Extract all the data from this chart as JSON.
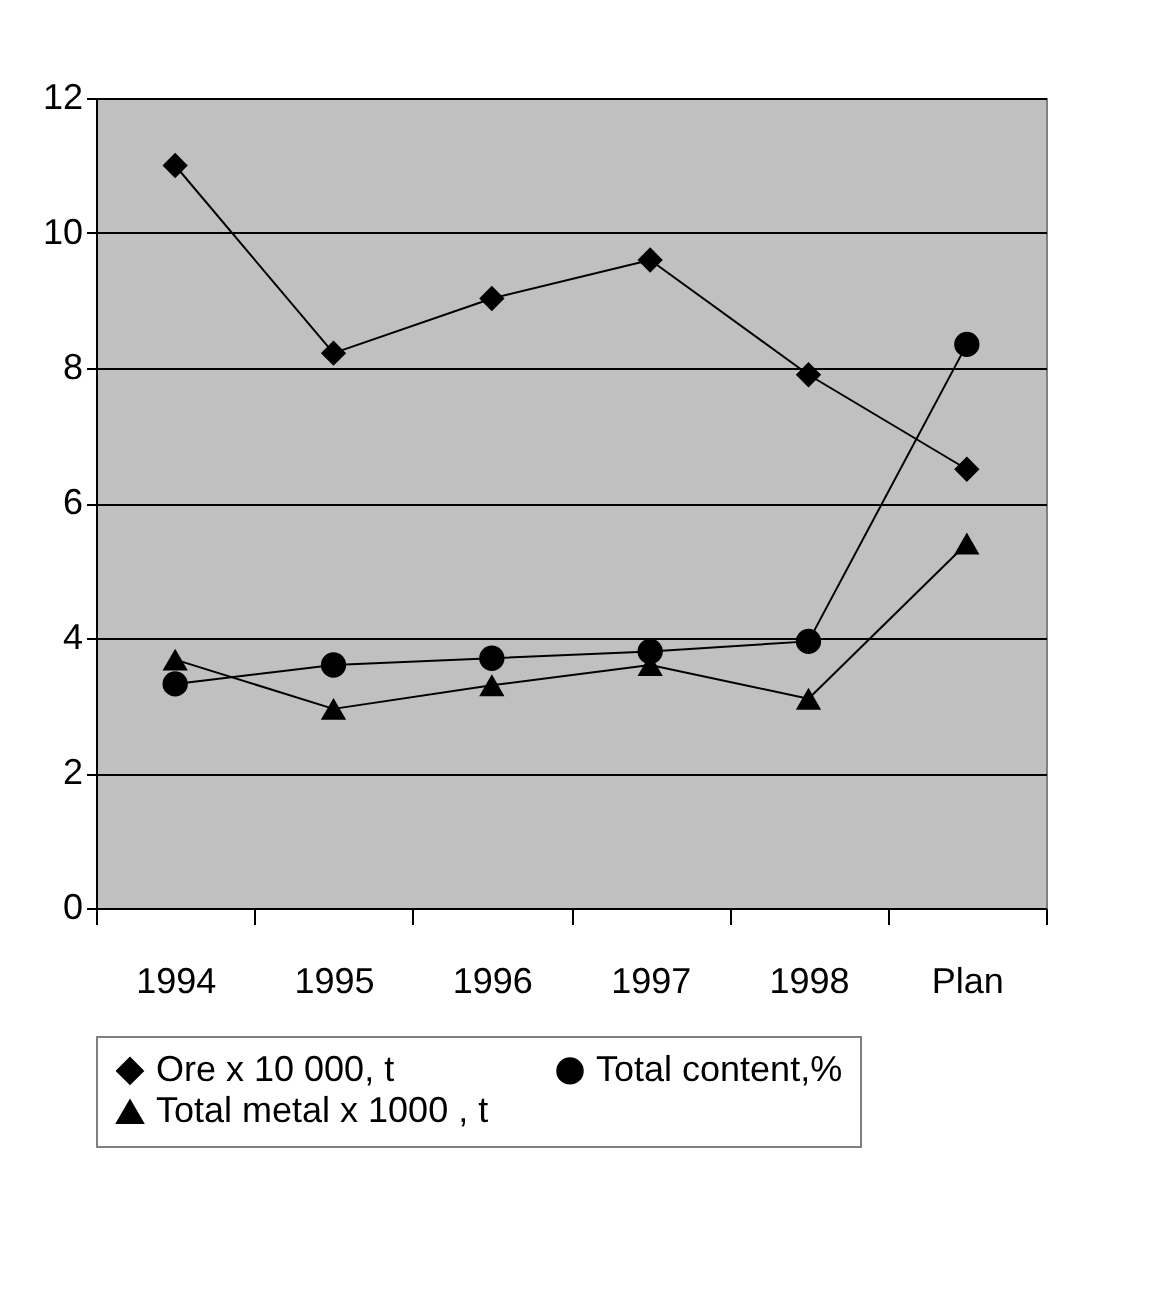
{
  "chart_data": {
    "type": "line",
    "categories": [
      "1994",
      "1995",
      "1996",
      "1997",
      "1998",
      "Plan"
    ],
    "series": [
      {
        "name": "Ore  x 10 000, t",
        "color": "#000000",
        "marker": "diamond",
        "values": [
          11.0,
          8.22,
          9.03,
          9.6,
          7.9,
          6.5
        ]
      },
      {
        "name": "Total content,%",
        "color": "#000000",
        "marker": "circle",
        "values": [
          3.32,
          3.6,
          3.7,
          3.8,
          3.95,
          8.35
        ]
      },
      {
        "name": "Total metal x 1000 , t",
        "color": "#000000",
        "marker": "triangle",
        "values": [
          3.68,
          2.95,
          3.3,
          3.6,
          3.1,
          5.4
        ]
      }
    ],
    "ylim": [
      0,
      12
    ],
    "yticks": [
      0,
      2,
      4,
      6,
      8,
      10,
      12
    ],
    "grid": "y",
    "legend": "bottom",
    "line_style": "solid"
  }
}
